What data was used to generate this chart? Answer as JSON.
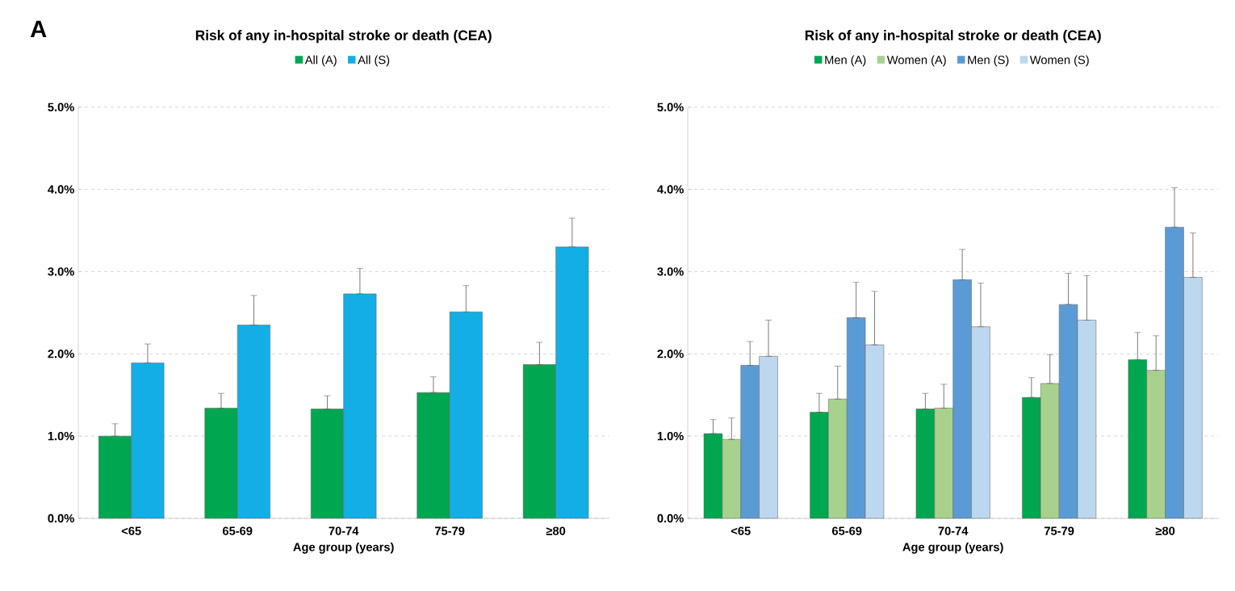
{
  "chart_data": [
    {
      "type": "bar",
      "title": "Risk of any in-hospital stroke or death (CEA)",
      "xlabel": "Age group (years)",
      "annotations": [
        "A"
      ],
      "categories": [
        "<65",
        "65-69",
        "70-74",
        "75-79",
        "≥80"
      ],
      "series": [
        {
          "name": "All (A)",
          "color": "#00a650",
          "values": [
            1.0,
            1.34,
            1.33,
            1.53,
            1.87
          ],
          "errors": [
            [
              1.0,
              1.15
            ],
            [
              1.34,
              1.52
            ],
            [
              1.33,
              1.49
            ],
            [
              1.53,
              1.72
            ],
            [
              1.87,
              2.14
            ]
          ]
        },
        {
          "name": "All (S)",
          "color": "#13aee6",
          "values": [
            1.89,
            2.35,
            2.73,
            2.51,
            3.3
          ],
          "errors": [
            [
              1.89,
              2.12
            ],
            [
              2.35,
              2.71
            ],
            [
              2.73,
              3.04
            ],
            [
              2.51,
              2.83
            ],
            [
              3.3,
              3.65
            ]
          ]
        }
      ],
      "ylim": [
        0,
        5
      ],
      "yticks": [
        {
          "value": 0,
          "label": "0.0%"
        },
        {
          "value": 1,
          "label": "1.0%"
        },
        {
          "value": 2,
          "label": "2.0%"
        },
        {
          "value": 3,
          "label": "3.0%"
        },
        {
          "value": 4,
          "label": "4.0%"
        },
        {
          "value": 5,
          "label": "5.0%"
        }
      ],
      "grid": "y",
      "legend": "top"
    },
    {
      "type": "bar",
      "title": "Risk of any in-hospital stroke or death (CEA)",
      "xlabel": "Age group (years)",
      "categories": [
        "<65",
        "65-69",
        "70-74",
        "75-79",
        "≥80"
      ],
      "series": [
        {
          "name": "Men (A)",
          "color": "#00a650",
          "values": [
            1.03,
            1.29,
            1.33,
            1.47,
            1.93
          ],
          "errors": [
            [
              1.03,
              1.2
            ],
            [
              1.29,
              1.52
            ],
            [
              1.33,
              1.52
            ],
            [
              1.47,
              1.71
            ],
            [
              1.93,
              2.26
            ]
          ]
        },
        {
          "name": "Women (A)",
          "color": "#a9d18e",
          "values": [
            0.96,
            1.45,
            1.34,
            1.64,
            1.8
          ],
          "errors": [
            [
              0.96,
              1.22
            ],
            [
              1.45,
              1.85
            ],
            [
              1.34,
              1.63
            ],
            [
              1.64,
              1.99
            ],
            [
              1.8,
              2.22
            ]
          ]
        },
        {
          "name": "Men (S)",
          "color": "#5b9bd5",
          "values": [
            1.86,
            2.44,
            2.9,
            2.6,
            3.54
          ],
          "errors": [
            [
              1.86,
              2.15
            ],
            [
              2.44,
              2.87
            ],
            [
              2.9,
              3.27
            ],
            [
              2.6,
              2.98
            ],
            [
              3.54,
              4.02
            ]
          ]
        },
        {
          "name": "Women (S)",
          "color": "#bdd7ee",
          "values": [
            1.97,
            2.11,
            2.33,
            2.41,
            2.93
          ],
          "errors": [
            [
              1.97,
              2.41
            ],
            [
              2.11,
              2.76
            ],
            [
              2.33,
              2.86
            ],
            [
              2.41,
              2.95
            ],
            [
              2.93,
              3.47
            ]
          ]
        }
      ],
      "ylim": [
        0,
        5
      ],
      "yticks": [
        {
          "value": 0,
          "label": "0.0%"
        },
        {
          "value": 1,
          "label": "1.0%"
        },
        {
          "value": 2,
          "label": "2.0%"
        },
        {
          "value": 3,
          "label": "3.0%"
        },
        {
          "value": 4,
          "label": "4.0%"
        },
        {
          "value": 5,
          "label": "5.0%"
        }
      ],
      "grid": "y",
      "legend": "top"
    }
  ]
}
